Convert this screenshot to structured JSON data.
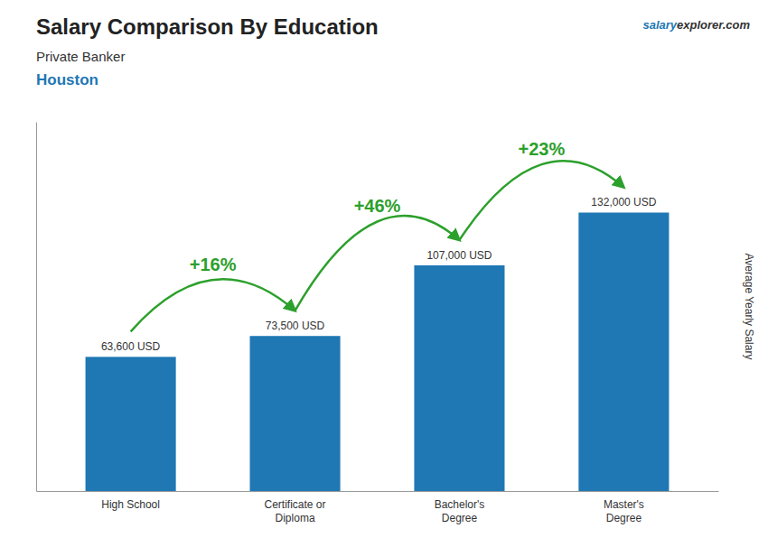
{
  "chart_data": {
    "type": "bar",
    "title": "Salary Comparison By Education",
    "subtitle": [
      "Private Banker",
      "Houston"
    ],
    "watermark": [
      "salary",
      "explorer.com"
    ],
    "ylabel": "Average Yearly Salary",
    "categories": [
      "High School",
      "Certificate or\nDiploma",
      "Bachelor's\nDegree",
      "Master's\nDegree"
    ],
    "values": [
      63600,
      73500,
      107000,
      132000
    ],
    "value_labels": [
      "63,600 USD",
      "73,500 USD",
      "107,000 USD",
      "132,000 USD"
    ],
    "data_labels": true,
    "annotations": [
      "+16%",
      "+46%",
      "+23%"
    ],
    "ylim": [
      0,
      175000
    ],
    "tick_labels": "x",
    "grid": false
  }
}
